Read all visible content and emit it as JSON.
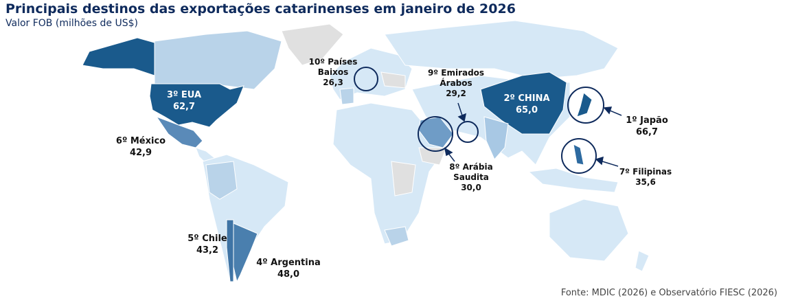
{
  "header": {
    "title": "Principais destinos das exportações catarinenses em janeiro de 2026",
    "subtitle": "Valor FOB (milhões de US$)"
  },
  "destinations": [
    {
      "rank": "1º",
      "name": "Japão",
      "value": "66,7"
    },
    {
      "rank": "2º",
      "name": "CHINA",
      "value": "65,0"
    },
    {
      "rank": "3º",
      "name": "EUA",
      "value": "62,7"
    },
    {
      "rank": "4º",
      "name": "Argentina",
      "value": "48,0"
    },
    {
      "rank": "5º",
      "name": "Chile",
      "value": "43,2"
    },
    {
      "rank": "6º",
      "name": "México",
      "value": "42,9"
    },
    {
      "rank": "7º",
      "name": "Filipinas",
      "value": "35,6"
    },
    {
      "rank": "8º",
      "name": "Arábia Saudita",
      "value": "30,0"
    },
    {
      "rank": "9º",
      "name": "Emirados Árabos",
      "value": "29,2"
    },
    {
      "rank": "10º",
      "name": "Países Baixos",
      "value": "26,3"
    }
  ],
  "source": "Fonte: MDIC (2026) e Observatório FIESC (2026)"
}
